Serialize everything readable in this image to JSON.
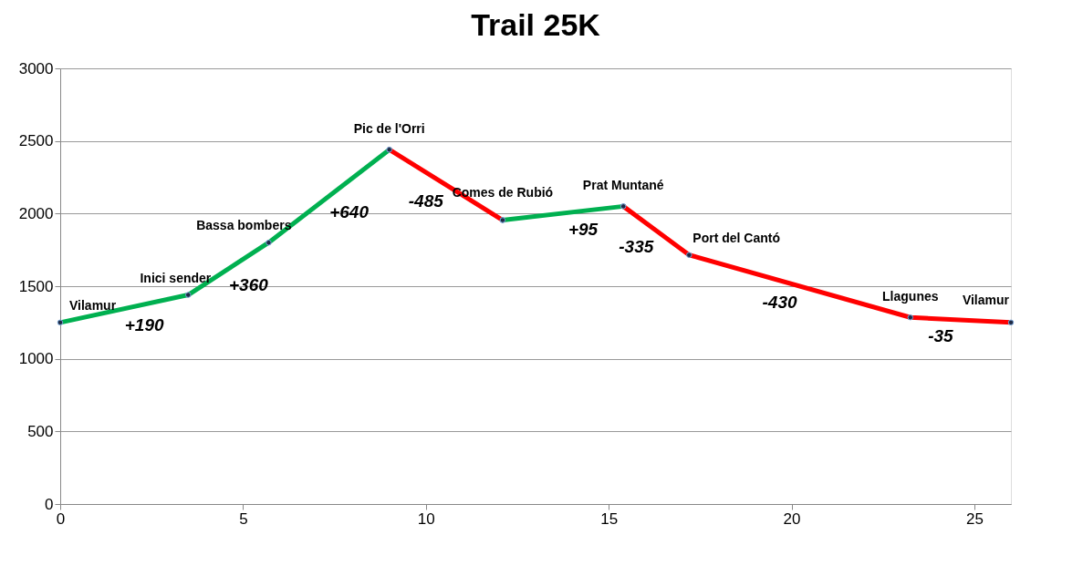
{
  "chart_data": {
    "type": "line",
    "title": "Trail 25K",
    "series": [
      {
        "color": "#00b050",
        "x": [
          0,
          3.5,
          5.7,
          9.0
        ],
        "values": [
          1250,
          1440,
          1800,
          2440
        ]
      },
      {
        "color": "#ff0000",
        "x": [
          9.0,
          12.1
        ],
        "values": [
          2440,
          1955
        ]
      },
      {
        "color": "#00b050",
        "x": [
          12.1,
          15.4
        ],
        "values": [
          1955,
          2050
        ]
      },
      {
        "color": "#ff0000",
        "x": [
          15.4,
          17.2,
          23.25,
          26
        ],
        "values": [
          2050,
          1715,
          1285,
          1250
        ]
      }
    ],
    "annotations": [
      {
        "text": "Vilamur",
        "x": 0,
        "y": 1250
      },
      {
        "text": "Inici sender",
        "x": 3.5,
        "y": 1440
      },
      {
        "text": "Bassa bombers",
        "x": 5.7,
        "y": 1800
      },
      {
        "text": "Pic de l'Orri",
        "x": 9.0,
        "y": 2440
      },
      {
        "text": "Comes de Rubió",
        "x": 12.1,
        "y": 1955
      },
      {
        "text": "Prat Muntané",
        "x": 15.4,
        "y": 2050
      },
      {
        "text": "Port del Cantó",
        "x": 17.2,
        "y": 1715
      },
      {
        "text": "Llagunes",
        "x": 23.25,
        "y": 1285
      },
      {
        "text": "Vilamur",
        "x": 26,
        "y": 1250
      },
      {
        "text": "+190",
        "x": 1.75,
        "y": 1345
      },
      {
        "text": "+360",
        "x": 4.6,
        "y": 1620
      },
      {
        "text": "+640",
        "x": 7.35,
        "y": 2120
      },
      {
        "text": "-485",
        "x": 10.55,
        "y": 2197.5
      },
      {
        "text": "+95",
        "x": 13.75,
        "y": 2002.5
      },
      {
        "text": "-335",
        "x": 16.3,
        "y": 1882.5
      },
      {
        "text": "-430",
        "x": 20.225,
        "y": 1500
      },
      {
        "text": "-35",
        "x": 24.625,
        "y": 1267.5
      }
    ],
    "xlim": [
      0,
      26
    ],
    "xticks": [
      0,
      5,
      10,
      15,
      20,
      25
    ],
    "ylim": [
      0,
      3000
    ],
    "yticks": [
      0,
      500,
      1000,
      1500,
      2000,
      2500,
      3000
    ],
    "grid": "y",
    "marker": "circle",
    "line_style": "solid"
  }
}
